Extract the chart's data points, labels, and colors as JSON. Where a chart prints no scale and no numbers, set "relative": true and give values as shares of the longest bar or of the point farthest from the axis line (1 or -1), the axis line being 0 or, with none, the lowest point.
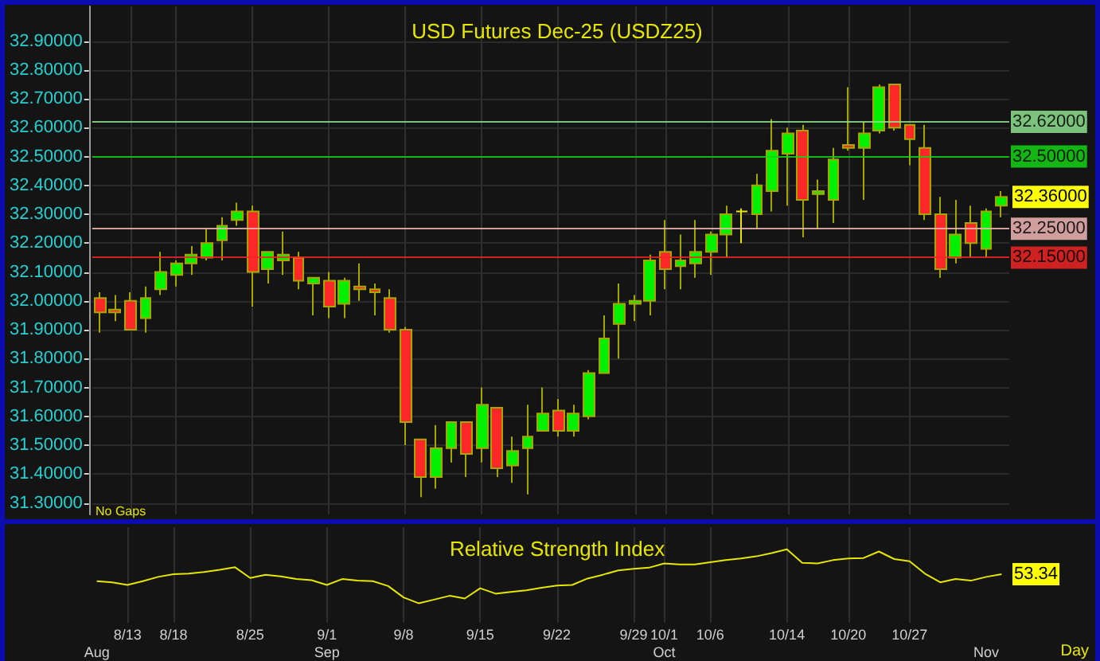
{
  "chart_data": [
    {
      "type": "candlestick",
      "title": "USD Futures Dec-25 (USDZ25)",
      "categories": [
        null,
        null,
        null,
        null,
        null,
        null,
        null,
        null,
        null,
        null,
        null,
        null,
        null,
        null,
        null,
        null,
        null,
        null,
        null,
        null,
        null,
        null,
        null,
        null,
        null,
        null,
        null,
        null,
        null,
        null,
        null,
        null,
        null,
        null,
        null,
        null,
        null,
        null,
        null,
        null,
        null,
        null,
        null,
        null,
        null,
        null,
        null,
        null,
        null,
        null,
        null,
        null,
        null,
        null,
        null,
        null,
        null,
        null,
        null,
        null
      ],
      "ohlc": [
        [
          32.01,
          32.03,
          31.89,
          31.96
        ],
        [
          31.97,
          32.02,
          31.93,
          31.96
        ],
        [
          32.0,
          32.03,
          31.9,
          31.9
        ],
        [
          31.94,
          32.05,
          31.89,
          32.01
        ],
        [
          32.04,
          32.17,
          32.02,
          32.1
        ],
        [
          32.09,
          32.14,
          32.05,
          32.13
        ],
        [
          32.13,
          32.19,
          32.09,
          32.16
        ],
        [
          32.15,
          32.25,
          32.14,
          32.2
        ],
        [
          32.21,
          32.29,
          32.14,
          32.26
        ],
        [
          32.28,
          32.34,
          32.26,
          32.31
        ],
        [
          32.31,
          32.33,
          31.98,
          32.1
        ],
        [
          32.11,
          32.17,
          32.06,
          32.17
        ],
        [
          32.14,
          32.24,
          32.09,
          32.16
        ],
        [
          32.15,
          32.17,
          32.04,
          32.07
        ],
        [
          32.06,
          32.08,
          31.95,
          32.08
        ],
        [
          32.07,
          32.1,
          31.94,
          31.98
        ],
        [
          31.99,
          32.08,
          31.94,
          32.07
        ],
        [
          32.05,
          32.13,
          32.0,
          32.04
        ],
        [
          32.04,
          32.06,
          31.95,
          32.03
        ],
        [
          32.01,
          32.04,
          31.89,
          31.9
        ],
        [
          31.9,
          31.91,
          31.5,
          31.58
        ],
        [
          31.52,
          31.52,
          31.32,
          31.39
        ],
        [
          31.39,
          31.57,
          31.35,
          31.49
        ],
        [
          31.49,
          31.58,
          31.44,
          31.58
        ],
        [
          31.58,
          31.58,
          31.39,
          31.47
        ],
        [
          31.49,
          31.7,
          31.44,
          31.64
        ],
        [
          31.63,
          31.63,
          31.39,
          31.42
        ],
        [
          31.43,
          31.53,
          31.37,
          31.48
        ],
        [
          31.49,
          31.64,
          31.33,
          31.53
        ],
        [
          31.55,
          31.7,
          31.55,
          31.61
        ],
        [
          31.62,
          31.66,
          31.53,
          31.55
        ],
        [
          31.55,
          31.64,
          31.53,
          31.61
        ],
        [
          31.6,
          31.76,
          31.59,
          31.75
        ],
        [
          31.75,
          31.95,
          31.75,
          31.87
        ],
        [
          31.92,
          32.06,
          31.8,
          31.99
        ],
        [
          31.99,
          32.02,
          31.93,
          32.0
        ],
        [
          32.0,
          32.16,
          31.95,
          32.14
        ],
        [
          32.17,
          32.28,
          32.04,
          32.11
        ],
        [
          32.12,
          32.23,
          32.04,
          32.14
        ],
        [
          32.13,
          32.28,
          32.08,
          32.17
        ],
        [
          32.17,
          32.24,
          32.09,
          32.23
        ],
        [
          32.23,
          32.33,
          32.15,
          32.3
        ],
        [
          32.31,
          32.32,
          32.2,
          32.31
        ],
        [
          32.3,
          32.44,
          32.25,
          32.4
        ],
        [
          32.38,
          32.63,
          32.31,
          32.52
        ],
        [
          32.51,
          32.6,
          32.33,
          32.58
        ],
        [
          32.59,
          32.61,
          32.22,
          32.35
        ],
        [
          32.37,
          32.42,
          32.25,
          32.38
        ],
        [
          32.35,
          32.53,
          32.27,
          32.49
        ],
        [
          32.54,
          32.74,
          32.52,
          32.53
        ],
        [
          32.53,
          32.62,
          32.35,
          32.58
        ],
        [
          32.59,
          32.75,
          32.58,
          32.74
        ],
        [
          32.75,
          32.75,
          32.59,
          32.6
        ],
        [
          32.61,
          32.61,
          32.47,
          32.56
        ],
        [
          32.53,
          32.61,
          32.28,
          32.3
        ],
        [
          32.3,
          32.36,
          32.08,
          32.11
        ],
        [
          32.15,
          32.35,
          32.13,
          32.23
        ],
        [
          32.27,
          32.33,
          32.15,
          32.2
        ],
        [
          32.18,
          32.32,
          32.15,
          32.31
        ],
        [
          32.33,
          32.38,
          32.29,
          32.36
        ]
      ],
      "value_labels": [
        null,
        null,
        null,
        null,
        null,
        null,
        null,
        null,
        null,
        null,
        null,
        null,
        null,
        null,
        null,
        null,
        null,
        null,
        null,
        null,
        null,
        null,
        null,
        null,
        null,
        null,
        null,
        null,
        null,
        null,
        null,
        null,
        null,
        null,
        null,
        null,
        null,
        null,
        null,
        null,
        null,
        null,
        null,
        null,
        null,
        null,
        null,
        null,
        null,
        null,
        null,
        null,
        null,
        null,
        null,
        null,
        null,
        null,
        null,
        "32.36000"
      ],
      "ylim": [
        31.26,
        33.02
      ],
      "yticks": [
        {
          "value": 31.3,
          "label": "31.30000"
        },
        {
          "value": 31.4,
          "label": "31.40000"
        },
        {
          "value": 31.5,
          "label": "31.50000"
        },
        {
          "value": 31.6,
          "label": "31.60000"
        },
        {
          "value": 31.7,
          "label": "31.70000"
        },
        {
          "value": 31.8,
          "label": "31.80000"
        },
        {
          "value": 31.9,
          "label": "31.90000"
        },
        {
          "value": 32,
          "label": "32.00000"
        },
        {
          "value": 32.1,
          "label": "32.10000"
        },
        {
          "value": 32.2,
          "label": "32.20000"
        },
        {
          "value": 32.3,
          "label": "32.30000"
        },
        {
          "value": 32.4,
          "label": "32.40000"
        },
        {
          "value": 32.5,
          "label": "32.50000"
        },
        {
          "value": 32.6,
          "label": "32.60000"
        },
        {
          "value": 32.7,
          "label": "32.70000"
        },
        {
          "value": 32.8,
          "label": "32.80000"
        },
        {
          "value": 32.9,
          "label": "32.90000"
        }
      ],
      "grid": true,
      "ref_lines": [
        {
          "axis": "y",
          "value": 32.62,
          "label": "32.62000",
          "color": "#8ee08e"
        },
        {
          "axis": "y",
          "value": 32.5,
          "label": "32.50000",
          "color": "#14d214"
        },
        {
          "axis": "y",
          "value": 32.25,
          "label": "32.25000",
          "color": "#f2b6b6"
        },
        {
          "axis": "y",
          "value": 32.15,
          "label": "32.15000",
          "color": "#ee2424"
        }
      ],
      "annotations": [
        "No Gaps"
      ]
    },
    {
      "type": "line",
      "title": "Relative Strength Index",
      "categories": [
        null,
        null,
        "8/13",
        null,
        null,
        "8/18",
        null,
        null,
        null,
        null,
        "8/25",
        null,
        null,
        null,
        null,
        "9/1",
        null,
        null,
        null,
        null,
        "9/8",
        null,
        null,
        null,
        null,
        "9/15",
        null,
        null,
        null,
        null,
        "9/22",
        null,
        null,
        null,
        null,
        "9/29",
        null,
        "10/1",
        null,
        null,
        "10/6",
        null,
        null,
        null,
        null,
        "10/14",
        null,
        null,
        null,
        "10/20",
        null,
        null,
        null,
        "10/27",
        null,
        null,
        null,
        null,
        null,
        null
      ],
      "values": [
        0.41,
        0.39,
        0.34,
        0.41,
        0.49,
        0.54,
        0.55,
        0.58,
        0.62,
        0.67,
        0.47,
        0.53,
        0.5,
        0.45,
        0.43,
        0.34,
        0.45,
        0.42,
        0.41,
        0.32,
        0.11,
        0,
        0.07,
        0.14,
        0.09,
        0.28,
        0.18,
        0.21,
        0.24,
        0.29,
        0.33,
        0.34,
        0.46,
        0.53,
        0.61,
        0.64,
        0.66,
        0.74,
        0.72,
        0.72,
        0.76,
        0.8,
        0.83,
        0.87,
        0.93,
        1,
        0.75,
        0.74,
        0.8,
        0.83,
        0.84,
        0.96,
        0.82,
        0.78,
        0.55,
        0.39,
        0.45,
        0.42,
        0.49,
        0.54
      ],
      "color": "#e6e600",
      "relative": true,
      "grid": "x",
      "tick_labels": "x",
      "annotations": [
        "53.34"
      ]
    },
    {
      "type": "other",
      "categories": [
        "Aug",
        null,
        null,
        null,
        null,
        null,
        null,
        null,
        null,
        null,
        null,
        null,
        null,
        null,
        null,
        "Sep",
        null,
        null,
        null,
        null,
        null,
        null,
        null,
        null,
        null,
        null,
        null,
        null,
        null,
        null,
        null,
        null,
        null,
        null,
        null,
        null,
        null,
        "Oct",
        null,
        null,
        null,
        null,
        null,
        null,
        null,
        null,
        null,
        null,
        null,
        null,
        null,
        null,
        null,
        null,
        null,
        null,
        null,
        null,
        "Nov",
        null
      ],
      "annotations": [
        "Day"
      ]
    }
  ]
}
